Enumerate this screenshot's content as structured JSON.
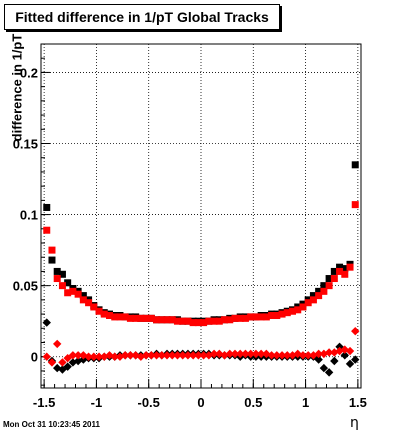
{
  "title": "Fitted difference in 1/pT  Global Tracks",
  "footer": "Mon Oct 31 10:23:45 2011",
  "chart_data": {
    "type": "scatter",
    "title": "Fitted difference in 1/pT  Global Tracks",
    "xlabel": "η",
    "ylabel": "difference in 1/pT",
    "xlim": [
      -1.53,
      1.53
    ],
    "ylim": [
      -0.022,
      0.22
    ],
    "xticks": [
      -1.5,
      -1,
      -0.5,
      0,
      0.5,
      1,
      1.5
    ],
    "xtick_labels": [
      "-1.5",
      "-1",
      "-0.5",
      "0",
      "0.5",
      "1",
      "1.5"
    ],
    "yticks": [
      0,
      0.05,
      0.1,
      0.15,
      0.2
    ],
    "ytick_labels": [
      "0",
      "0.05",
      "0.1",
      "0.15",
      "0.2"
    ],
    "grid": true,
    "series": [
      {
        "color": "#000000",
        "marker": "square",
        "points": [
          [
            -1.475,
            0.105
          ],
          [
            -1.425,
            0.068
          ],
          [
            -1.375,
            0.06
          ],
          [
            -1.325,
            0.058
          ],
          [
            -1.275,
            0.052
          ],
          [
            -1.225,
            0.048
          ],
          [
            -1.175,
            0.046
          ],
          [
            -1.125,
            0.043
          ],
          [
            -1.075,
            0.04
          ],
          [
            -1.025,
            0.036
          ],
          [
            -0.975,
            0.033
          ],
          [
            -0.925,
            0.031
          ],
          [
            -0.875,
            0.03
          ],
          [
            -0.825,
            0.029
          ],
          [
            -0.775,
            0.029
          ],
          [
            -0.725,
            0.028
          ],
          [
            -0.675,
            0.028
          ],
          [
            -0.625,
            0.028
          ],
          [
            -0.575,
            0.027
          ],
          [
            -0.525,
            0.027
          ],
          [
            -0.475,
            0.027
          ],
          [
            -0.425,
            0.026
          ],
          [
            -0.375,
            0.026
          ],
          [
            -0.325,
            0.026
          ],
          [
            -0.275,
            0.026
          ],
          [
            -0.225,
            0.026
          ],
          [
            -0.175,
            0.025
          ],
          [
            -0.125,
            0.025
          ],
          [
            -0.075,
            0.025
          ],
          [
            -0.025,
            0.025
          ],
          [
            0.025,
            0.025
          ],
          [
            0.075,
            0.025
          ],
          [
            0.125,
            0.026
          ],
          [
            0.175,
            0.026
          ],
          [
            0.225,
            0.026
          ],
          [
            0.275,
            0.027
          ],
          [
            0.325,
            0.027
          ],
          [
            0.375,
            0.028
          ],
          [
            0.425,
            0.028
          ],
          [
            0.475,
            0.028
          ],
          [
            0.525,
            0.028
          ],
          [
            0.575,
            0.029
          ],
          [
            0.625,
            0.029
          ],
          [
            0.675,
            0.03
          ],
          [
            0.725,
            0.03
          ],
          [
            0.775,
            0.031
          ],
          [
            0.825,
            0.032
          ],
          [
            0.875,
            0.033
          ],
          [
            0.925,
            0.035
          ],
          [
            0.975,
            0.037
          ],
          [
            1.025,
            0.04
          ],
          [
            1.075,
            0.043
          ],
          [
            1.125,
            0.046
          ],
          [
            1.175,
            0.05
          ],
          [
            1.225,
            0.055
          ],
          [
            1.275,
            0.06
          ],
          [
            1.325,
            0.063
          ],
          [
            1.375,
            0.062
          ],
          [
            1.425,
            0.065
          ],
          [
            1.475,
            0.135
          ]
        ]
      },
      {
        "color": "#ff0000",
        "marker": "square",
        "points": [
          [
            -1.475,
            0.089
          ],
          [
            -1.425,
            0.075
          ],
          [
            -1.375,
            0.055
          ],
          [
            -1.325,
            0.05
          ],
          [
            -1.275,
            0.045
          ],
          [
            -1.225,
            0.046
          ],
          [
            -1.175,
            0.044
          ],
          [
            -1.125,
            0.04
          ],
          [
            -1.075,
            0.038
          ],
          [
            -1.025,
            0.035
          ],
          [
            -0.975,
            0.032
          ],
          [
            -0.925,
            0.03
          ],
          [
            -0.875,
            0.029
          ],
          [
            -0.825,
            0.028
          ],
          [
            -0.775,
            0.028
          ],
          [
            -0.725,
            0.028
          ],
          [
            -0.675,
            0.027
          ],
          [
            -0.625,
            0.027
          ],
          [
            -0.575,
            0.027
          ],
          [
            -0.525,
            0.027
          ],
          [
            -0.475,
            0.027
          ],
          [
            -0.425,
            0.026
          ],
          [
            -0.375,
            0.026
          ],
          [
            -0.325,
            0.026
          ],
          [
            -0.275,
            0.026
          ],
          [
            -0.225,
            0.025
          ],
          [
            -0.175,
            0.025
          ],
          [
            -0.125,
            0.025
          ],
          [
            -0.075,
            0.024
          ],
          [
            -0.025,
            0.024
          ],
          [
            0.025,
            0.024
          ],
          [
            0.075,
            0.025
          ],
          [
            0.125,
            0.025
          ],
          [
            0.175,
            0.025
          ],
          [
            0.225,
            0.026
          ],
          [
            0.275,
            0.026
          ],
          [
            0.325,
            0.027
          ],
          [
            0.375,
            0.027
          ],
          [
            0.425,
            0.027
          ],
          [
            0.475,
            0.028
          ],
          [
            0.525,
            0.028
          ],
          [
            0.575,
            0.028
          ],
          [
            0.625,
            0.028
          ],
          [
            0.675,
            0.029
          ],
          [
            0.725,
            0.029
          ],
          [
            0.775,
            0.03
          ],
          [
            0.825,
            0.031
          ],
          [
            0.875,
            0.032
          ],
          [
            0.925,
            0.033
          ],
          [
            0.975,
            0.035
          ],
          [
            1.025,
            0.038
          ],
          [
            1.075,
            0.04
          ],
          [
            1.125,
            0.043
          ],
          [
            1.175,
            0.046
          ],
          [
            1.225,
            0.05
          ],
          [
            1.275,
            0.055
          ],
          [
            1.325,
            0.06
          ],
          [
            1.375,
            0.058
          ],
          [
            1.425,
            0.063
          ],
          [
            1.475,
            0.107
          ]
        ]
      },
      {
        "color": "#000000",
        "marker": "diamond",
        "points": [
          [
            -1.475,
            0.024
          ],
          [
            -1.425,
            -0.003
          ],
          [
            -1.375,
            -0.008
          ],
          [
            -1.325,
            -0.009
          ],
          [
            -1.275,
            -0.007
          ],
          [
            -1.225,
            -0.004
          ],
          [
            -1.175,
            -0.003
          ],
          [
            -1.125,
            -0.002
          ],
          [
            -1.075,
            -0.001
          ],
          [
            -1.025,
            -0.001
          ],
          [
            -0.975,
            -0.001
          ],
          [
            -0.925,
            0.0
          ],
          [
            -0.875,
            0.0
          ],
          [
            -0.825,
            0.0
          ],
          [
            -0.775,
            0.001
          ],
          [
            -0.725,
            0.001
          ],
          [
            -0.675,
            0.001
          ],
          [
            -0.625,
            0.001
          ],
          [
            -0.575,
            0.001
          ],
          [
            -0.525,
            0.001
          ],
          [
            -0.475,
            0.001
          ],
          [
            -0.425,
            0.002
          ],
          [
            -0.375,
            0.001
          ],
          [
            -0.325,
            0.002
          ],
          [
            -0.275,
            0.002
          ],
          [
            -0.225,
            0.002
          ],
          [
            -0.175,
            0.002
          ],
          [
            -0.125,
            0.002
          ],
          [
            -0.075,
            0.002
          ],
          [
            -0.025,
            0.002
          ],
          [
            0.025,
            0.002
          ],
          [
            0.075,
            0.002
          ],
          [
            0.125,
            0.001
          ],
          [
            0.175,
            0.001
          ],
          [
            0.225,
            0.001
          ],
          [
            0.275,
            0.001
          ],
          [
            0.325,
            0.001
          ],
          [
            0.375,
            0.0
          ],
          [
            0.425,
            0.001
          ],
          [
            0.475,
            0.0
          ],
          [
            0.525,
            0.0
          ],
          [
            0.575,
            0.0
          ],
          [
            0.625,
            0.0
          ],
          [
            0.675,
            0.0
          ],
          [
            0.725,
            0.0
          ],
          [
            0.775,
            0.0
          ],
          [
            0.825,
            0.0
          ],
          [
            0.875,
            0.0
          ],
          [
            0.925,
            0.0
          ],
          [
            0.975,
            0.0
          ],
          [
            1.025,
            0.0
          ],
          [
            1.075,
            0.0
          ],
          [
            1.125,
            -0.002
          ],
          [
            1.175,
            -0.008
          ],
          [
            1.225,
            -0.011
          ],
          [
            1.275,
            -0.003
          ],
          [
            1.325,
            0.007
          ],
          [
            1.375,
            0.001
          ],
          [
            1.425,
            -0.005
          ],
          [
            1.475,
            -0.002
          ]
        ]
      },
      {
        "color": "#ff0000",
        "marker": "diamond",
        "points": [
          [
            -1.475,
            0.0
          ],
          [
            -1.425,
            -0.004
          ],
          [
            -1.375,
            0.009
          ],
          [
            -1.325,
            -0.004
          ],
          [
            -1.275,
            -0.001
          ],
          [
            -1.225,
            0.001
          ],
          [
            -1.175,
            0.001
          ],
          [
            -1.125,
            0.001
          ],
          [
            -1.075,
            0.0
          ],
          [
            -1.025,
            0.0
          ],
          [
            -0.975,
            0.0
          ],
          [
            -0.925,
            0.0
          ],
          [
            -0.875,
            0.001
          ],
          [
            -0.825,
            0.0
          ],
          [
            -0.775,
            0.0
          ],
          [
            -0.725,
            0.001
          ],
          [
            -0.675,
            0.001
          ],
          [
            -0.625,
            0.001
          ],
          [
            -0.575,
            0.0
          ],
          [
            -0.525,
            0.001
          ],
          [
            -0.475,
            0.001
          ],
          [
            -0.425,
            0.001
          ],
          [
            -0.375,
            0.001
          ],
          [
            -0.325,
            0.001
          ],
          [
            -0.275,
            0.001
          ],
          [
            -0.225,
            0.001
          ],
          [
            -0.175,
            0.001
          ],
          [
            -0.125,
            0.001
          ],
          [
            -0.075,
            0.001
          ],
          [
            -0.025,
            0.001
          ],
          [
            0.025,
            0.001
          ],
          [
            0.075,
            0.001
          ],
          [
            0.125,
            0.002
          ],
          [
            0.175,
            0.002
          ],
          [
            0.225,
            0.001
          ],
          [
            0.275,
            0.002
          ],
          [
            0.325,
            0.002
          ],
          [
            0.375,
            0.002
          ],
          [
            0.425,
            0.002
          ],
          [
            0.475,
            0.002
          ],
          [
            0.525,
            0.002
          ],
          [
            0.575,
            0.002
          ],
          [
            0.625,
            0.002
          ],
          [
            0.675,
            0.001
          ],
          [
            0.725,
            0.001
          ],
          [
            0.775,
            0.001
          ],
          [
            0.825,
            0.001
          ],
          [
            0.875,
            0.001
          ],
          [
            0.925,
            0.002
          ],
          [
            0.975,
            0.001
          ],
          [
            1.025,
            0.001
          ],
          [
            1.075,
            0.001
          ],
          [
            1.125,
            0.002
          ],
          [
            1.175,
            0.002
          ],
          [
            1.225,
            0.003
          ],
          [
            1.275,
            0.003
          ],
          [
            1.325,
            0.004
          ],
          [
            1.375,
            0.005
          ],
          [
            1.425,
            0.004
          ],
          [
            1.475,
            0.018
          ]
        ]
      }
    ]
  }
}
